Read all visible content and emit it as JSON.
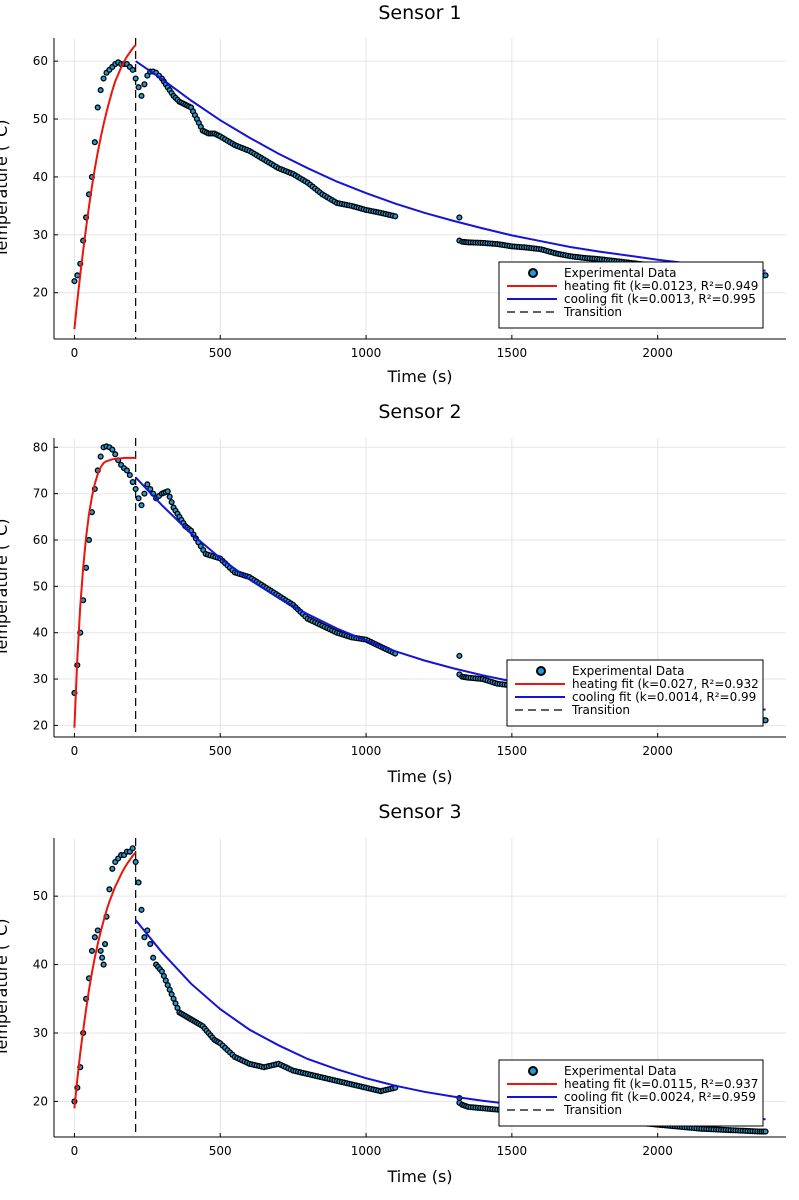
{
  "chart_data": [
    {
      "type": "scatter",
      "title": "Sensor 1",
      "xlabel": "Time (s)",
      "ylabel": "Temperature (°C)",
      "xlim": [
        -70,
        2440
      ],
      "ylim": [
        12,
        64
      ],
      "xticks": [
        0,
        500,
        1000,
        1500,
        2000
      ],
      "yticks": [
        20,
        30,
        40,
        50,
        60
      ],
      "grid": true,
      "legend_position": "bottom-right",
      "transition_x": 210,
      "series": [
        {
          "name": "Experimental Data",
          "kind": "points",
          "color": "#1f9bd8",
          "x": [
            0,
            10,
            20,
            30,
            40,
            50,
            60,
            70,
            80,
            90,
            100,
            110,
            120,
            130,
            140,
            150,
            160,
            170,
            180,
            190,
            200,
            210,
            220,
            230,
            240,
            250,
            260,
            270,
            280,
            290,
            300,
            320,
            340,
            360,
            380,
            400,
            420,
            440,
            460,
            480,
            500,
            550,
            600,
            650,
            700,
            750,
            800,
            850,
            900,
            950,
            1000,
            1050,
            1100,
            1320,
            1320,
            1330,
            1350,
            1400,
            1450,
            1500,
            1550,
            1600,
            1650,
            1700,
            1750,
            1800,
            1850,
            1900,
            1950,
            2000,
            2050,
            2100,
            2150,
            2200,
            2250,
            2300,
            2350,
            2370
          ],
          "y": [
            22,
            23,
            25,
            29,
            33,
            37,
            40,
            46,
            52,
            55,
            57,
            58,
            58.5,
            59,
            59.5,
            59.8,
            59.5,
            59.5,
            59.5,
            59,
            58.5,
            57,
            55.5,
            54,
            56,
            57.5,
            58.2,
            58.2,
            58,
            57.5,
            57,
            55.5,
            54,
            53,
            52.5,
            52,
            50,
            48,
            47.5,
            47.5,
            47,
            45.5,
            44.5,
            43,
            41.5,
            40.5,
            39,
            37,
            35.5,
            35,
            34.3,
            33.8,
            33.2,
            33,
            29,
            28.8,
            28.7,
            28.6,
            28.4,
            28,
            27.8,
            27.5,
            26.8,
            26.3,
            26,
            25.8,
            25.5,
            25.2,
            24.9,
            24.6,
            24.3,
            24.0,
            23.8,
            23.6,
            23.4,
            23.2,
            23.0,
            23.0
          ]
        },
        {
          "name": "heating fit (k=0.0123, R²=0.949",
          "kind": "line",
          "color": "#e8160c",
          "x": [
            0,
            10,
            20,
            30,
            40,
            50,
            60,
            70,
            80,
            90,
            100,
            110,
            120,
            130,
            140,
            150,
            160,
            170,
            180,
            190,
            200,
            210
          ],
          "y": [
            13.7,
            18.6,
            23.0,
            27.3,
            31.2,
            34.9,
            38.3,
            41.4,
            44.2,
            46.8,
            49.1,
            51.2,
            53.1,
            54.9,
            56.5,
            57.7,
            58.9,
            59.9,
            60.8,
            61.5,
            62.2,
            62.8
          ]
        },
        {
          "name": "cooling fit (k=0.0013, R²=0.995",
          "kind": "line",
          "color": "#1414d8",
          "x": [
            210,
            300,
            400,
            500,
            600,
            700,
            800,
            900,
            1000,
            1100,
            1200,
            1300,
            1400,
            1500,
            1600,
            1700,
            1800,
            1900,
            2000,
            2100,
            2200,
            2300,
            2370
          ],
          "y": [
            60,
            56.9,
            53.2,
            49.8,
            46.8,
            44.0,
            41.5,
            39.2,
            37.2,
            35.4,
            33.8,
            32.4,
            31.1,
            29.9,
            28.9,
            27.9,
            27.1,
            26.4,
            25.7,
            25.1,
            24.6,
            24.1,
            23.8
          ]
        }
      ],
      "legend": [
        "Experimental Data",
        "heating fit (k=0.0123, R²=0.949",
        "cooling fit (k=0.0013, R²=0.995",
        "Transition"
      ]
    },
    {
      "type": "scatter",
      "title": "Sensor 2",
      "xlabel": "Time (s)",
      "ylabel": "Temperature (°C)",
      "xlim": [
        -70,
        2440
      ],
      "ylim": [
        17.5,
        82
      ],
      "xticks": [
        0,
        500,
        1000,
        1500,
        2000
      ],
      "yticks": [
        20,
        30,
        40,
        50,
        60,
        70,
        80
      ],
      "grid": true,
      "legend_position": "bottom-right",
      "transition_x": 210,
      "series": [
        {
          "name": "Experimental Data",
          "kind": "points",
          "color": "#1f9bd8",
          "x": [
            0,
            10,
            20,
            30,
            40,
            50,
            60,
            70,
            80,
            90,
            100,
            110,
            120,
            130,
            140,
            150,
            160,
            170,
            180,
            190,
            200,
            210,
            220,
            230,
            240,
            250,
            260,
            270,
            280,
            290,
            300,
            320,
            340,
            360,
            380,
            400,
            450,
            500,
            550,
            600,
            650,
            700,
            750,
            800,
            850,
            900,
            950,
            1000,
            1050,
            1100,
            1320,
            1320,
            1330,
            1350,
            1400,
            1450,
            1500,
            1550,
            1600,
            1650,
            1700,
            1750,
            1800,
            1850,
            1900,
            1950,
            2000,
            2050,
            2100,
            2150,
            2200,
            2250,
            2300,
            2350,
            2370
          ],
          "y": [
            27,
            33,
            40,
            47,
            54,
            60,
            66,
            71,
            75,
            78,
            80,
            80.2,
            80,
            79.5,
            78.5,
            77.2,
            76.2,
            75.5,
            75,
            74,
            72.5,
            71,
            69,
            67.5,
            70,
            72,
            71,
            70,
            69,
            69.5,
            70,
            70.5,
            67,
            65,
            63,
            62,
            57,
            56,
            53,
            52,
            50,
            48,
            46,
            43,
            41.5,
            40,
            39,
            38.5,
            37,
            35.5,
            35,
            31,
            30.5,
            30.3,
            30,
            29,
            28.6,
            28.3,
            27.9,
            27.5,
            27.0,
            26.5,
            26.0,
            25.3,
            24.6,
            23.9,
            23.2,
            22.6,
            22.1,
            21.8,
            21.5,
            21.4,
            21.3,
            21.2,
            21.1
          ]
        },
        {
          "name": "heating fit (k=0.027, R²=0.932",
          "kind": "line",
          "color": "#e8160c",
          "x": [
            0,
            10,
            20,
            30,
            40,
            50,
            60,
            70,
            80,
            90,
            100,
            110,
            120,
            130,
            140,
            150,
            160,
            170,
            180,
            190,
            200,
            210
          ],
          "y": [
            19.5,
            34.3,
            45.5,
            54.1,
            60.6,
            65.6,
            69.3,
            72.1,
            74.2,
            75.7,
            76.6,
            77.0,
            77.2,
            77.4,
            77.5,
            77.6,
            77.6,
            77.7,
            77.7,
            77.7,
            77.7,
            77.7
          ]
        },
        {
          "name": "cooling fit (k=0.0014, R²=0.99",
          "kind": "line",
          "color": "#1414d8",
          "x": [
            210,
            300,
            400,
            500,
            600,
            700,
            800,
            900,
            1000,
            1100,
            1200,
            1300,
            1400,
            1500,
            1600,
            1700,
            1800,
            1900,
            2000,
            2100,
            2200,
            2300,
            2370
          ],
          "y": [
            73.5,
            67.5,
            61.4,
            56.1,
            51.5,
            47.5,
            44.0,
            40.9,
            38.3,
            36.0,
            34.0,
            32.3,
            30.8,
            29.5,
            28.4,
            27.4,
            26.5,
            25.8,
            25.1,
            24.6,
            24.1,
            23.7,
            23.4
          ]
        }
      ],
      "legend": [
        "Experimental Data",
        "heating fit (k=0.027, R²=0.932",
        "cooling fit (k=0.0014, R²=0.99",
        "Transition"
      ]
    },
    {
      "type": "scatter",
      "title": "Sensor 3",
      "xlabel": "Time (s)",
      "ylabel": "Temperature (°C)",
      "xlim": [
        -70,
        2440
      ],
      "ylim": [
        14.8,
        58.5
      ],
      "xticks": [
        0,
        500,
        1000,
        1500,
        2000
      ],
      "yticks": [
        20,
        30,
        40,
        50
      ],
      "grid": true,
      "legend_position": "bottom-right",
      "transition_x": 210,
      "series": [
        {
          "name": "Experimental Data",
          "kind": "points",
          "color": "#1f9bd8",
          "x": [
            0,
            10,
            20,
            30,
            40,
            50,
            60,
            70,
            80,
            90,
            95,
            100,
            105,
            110,
            120,
            130,
            140,
            150,
            160,
            170,
            180,
            190,
            200,
            210,
            220,
            230,
            240,
            250,
            260,
            270,
            280,
            300,
            320,
            340,
            360,
            380,
            400,
            420,
            440,
            460,
            480,
            500,
            550,
            600,
            650,
            700,
            750,
            800,
            850,
            900,
            950,
            1000,
            1050,
            1100,
            1320,
            1320,
            1330,
            1350,
            1400,
            1450,
            1500,
            1550,
            1600,
            1650,
            1700,
            1750,
            1800,
            1850,
            1900,
            1950,
            2000,
            2050,
            2100,
            2150,
            2200,
            2250,
            2300,
            2350,
            2370
          ],
          "y": [
            20,
            22,
            25,
            30,
            35,
            38,
            42,
            44,
            45,
            42,
            41,
            40,
            43,
            47,
            51,
            54,
            55,
            55.5,
            56,
            56,
            56.5,
            56.5,
            57,
            55,
            52,
            48,
            44,
            45,
            43,
            41,
            40,
            39,
            37,
            35,
            33,
            32.5,
            32,
            31.5,
            31,
            30,
            29,
            28.5,
            26.5,
            25.5,
            25,
            25.5,
            24.5,
            24.0,
            23.5,
            23.0,
            22.5,
            22.0,
            21.5,
            22,
            20.5,
            19.8,
            19.5,
            19.2,
            19.0,
            18.8,
            18.6,
            18.4,
            18.2,
            18.0,
            17.8,
            17.6,
            17.4,
            17.2,
            17.0,
            16.8,
            16.6,
            16.4,
            16.2,
            16.0,
            15.9,
            15.8,
            15.7,
            15.6,
            15.6
          ]
        },
        {
          "name": "heating fit (k=0.0115, R²=0.937",
          "kind": "line",
          "color": "#e8160c",
          "x": [
            0,
            10,
            20,
            30,
            40,
            50,
            60,
            70,
            80,
            90,
            100,
            110,
            120,
            130,
            140,
            150,
            160,
            170,
            180,
            190,
            200,
            210
          ],
          "y": [
            19.0,
            23.2,
            27.0,
            30.4,
            33.5,
            36.3,
            38.8,
            41.0,
            43.0,
            44.8,
            46.4,
            47.9,
            49.2,
            50.3,
            51.4,
            52.3,
            53.2,
            54.0,
            54.7,
            55.3,
            55.9,
            56.4
          ]
        },
        {
          "name": "cooling fit (k=0.0024, R²=0.959",
          "kind": "line",
          "color": "#1414d8",
          "x": [
            210,
            300,
            400,
            500,
            600,
            700,
            800,
            900,
            1000,
            1100,
            1200,
            1300,
            1400,
            1500,
            1600,
            1700,
            1800,
            1900,
            2000,
            2100,
            2200,
            2300,
            2370
          ],
          "y": [
            46.5,
            41.8,
            37.2,
            33.5,
            30.5,
            28.2,
            26.2,
            24.7,
            23.4,
            22.3,
            21.4,
            20.7,
            20.1,
            19.6,
            19.2,
            18.8,
            18.5,
            18.2,
            18.0,
            17.8,
            17.6,
            17.5,
            17.4
          ]
        }
      ],
      "legend": [
        "Experimental Data",
        "heating fit (k=0.0115, R²=0.937",
        "cooling fit (k=0.0024, R²=0.959",
        "Transition"
      ]
    }
  ]
}
